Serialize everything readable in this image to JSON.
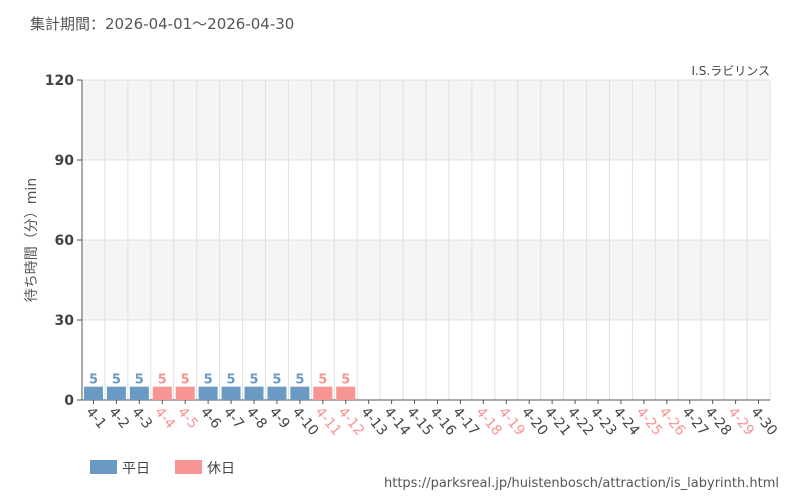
{
  "header": {
    "period_label": "集計期間：2026-04-01～2026-04-30"
  },
  "footer": {
    "source_url": "https://parksreal.jp/huistenbosch/attraction/is_labyrinth.html"
  },
  "legend": {
    "weekday": "平日",
    "holiday": "休日"
  },
  "colors": {
    "weekday": "#6a9ac4",
    "holiday": "#f79494",
    "band": "#f5f5f5",
    "grid": "#e0e0e0"
  },
  "chart_data": {
    "type": "bar",
    "title": "",
    "subtitle": "I.S.ラビリンス",
    "ylabel": "待ち時間（分）min",
    "xlabel": "",
    "ylim": [
      0,
      120
    ],
    "yticks": [
      0,
      30,
      60,
      90,
      120
    ],
    "grid": true,
    "legend_position": "bottom-left",
    "categories": [
      "4-1",
      "4-2",
      "4-3",
      "4-4",
      "4-5",
      "4-6",
      "4-7",
      "4-8",
      "4-9",
      "4-10",
      "4-11",
      "4-12",
      "4-13",
      "4-14",
      "4-15",
      "4-16",
      "4-17",
      "4-18",
      "4-19",
      "4-20",
      "4-21",
      "4-22",
      "4-23",
      "4-24",
      "4-25",
      "4-26",
      "4-27",
      "4-28",
      "4-29",
      "4-30"
    ],
    "values": [
      5,
      5,
      5,
      5,
      5,
      5,
      5,
      5,
      5,
      5,
      5,
      5,
      null,
      null,
      null,
      null,
      null,
      null,
      null,
      null,
      null,
      null,
      null,
      null,
      null,
      null,
      null,
      null,
      null,
      null
    ],
    "day_type": [
      "weekday",
      "weekday",
      "weekday",
      "holiday",
      "holiday",
      "weekday",
      "weekday",
      "weekday",
      "weekday",
      "weekday",
      "holiday",
      "holiday",
      "weekday",
      "weekday",
      "weekday",
      "weekday",
      "weekday",
      "holiday",
      "holiday",
      "weekday",
      "weekday",
      "weekday",
      "weekday",
      "weekday",
      "holiday",
      "holiday",
      "weekday",
      "weekday",
      "holiday",
      "weekday"
    ]
  }
}
